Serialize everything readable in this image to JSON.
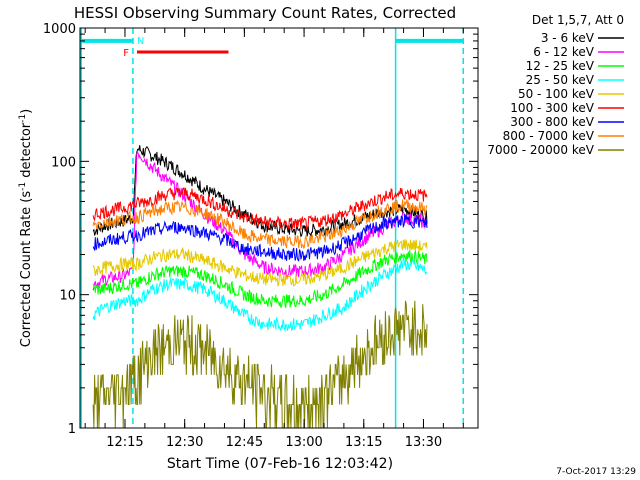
{
  "chart_data": {
    "type": "line",
    "title": "HESSI Observing Summary Count Rates, Corrected",
    "xlabel": "Start Time (07-Feb-16 12:03:42)",
    "ylabel_main": "Corrected Count Rate (s",
    "ylabel_sup1": "-1",
    "ylabel_mid": " detector",
    "ylabel_sup2": "-1",
    "ylabel_end": ")",
    "yscale": "log",
    "ylim": [
      1,
      1000
    ],
    "xlim_minutes": [
      "12:03:42",
      "13:43:42"
    ],
    "y_ticks": [
      "1",
      "10",
      "100",
      "1000"
    ],
    "x_ticks": [
      "12:15",
      "12:30",
      "12:45",
      "13:00",
      "13:15",
      "13:30"
    ],
    "x_tick_minutes": [
      735,
      750,
      765,
      780,
      795,
      810
    ],
    "legend_title": "Det 1,5,7, Att 0",
    "legend_position": "right",
    "timestamp": "7-Oct-2017 13:29",
    "flags": {
      "F": {
        "label": "F",
        "color": "#ff0000",
        "start": "12:16",
        "end": "12:41",
        "level": 0.85
      },
      "N": {
        "label": "N",
        "color": "#00ffff",
        "start": "12:17",
        "end": "12:17",
        "level": 0.95
      }
    },
    "night_bands": [
      {
        "start": "12:04",
        "end": "12:17"
      },
      {
        "start": "13:23",
        "end": "13:40"
      }
    ],
    "series": [
      {
        "name": "3 - 6 keV",
        "color": "#000000",
        "values": [
          [
            727,
            30
          ],
          [
            730,
            33
          ],
          [
            735,
            36
          ],
          [
            737,
            38
          ],
          [
            738,
            125
          ],
          [
            742,
            110
          ],
          [
            746,
            95
          ],
          [
            750,
            80
          ],
          [
            755,
            62
          ],
          [
            760,
            50
          ],
          [
            765,
            40
          ],
          [
            770,
            33
          ],
          [
            775,
            31
          ],
          [
            780,
            30
          ],
          [
            785,
            31
          ],
          [
            790,
            34
          ],
          [
            795,
            38
          ],
          [
            800,
            42
          ],
          [
            805,
            44
          ],
          [
            809,
            40
          ],
          [
            811,
            38
          ]
        ]
      },
      {
        "name": "6 - 12 keV",
        "color": "#ff00ff",
        "values": [
          [
            727,
            12
          ],
          [
            730,
            13
          ],
          [
            735,
            14
          ],
          [
            737,
            15
          ],
          [
            738,
            120
          ],
          [
            742,
            90
          ],
          [
            746,
            70
          ],
          [
            750,
            55
          ],
          [
            755,
            40
          ],
          [
            760,
            30
          ],
          [
            765,
            20
          ],
          [
            770,
            16
          ],
          [
            775,
            15
          ],
          [
            780,
            15
          ],
          [
            785,
            16
          ],
          [
            790,
            20
          ],
          [
            795,
            26
          ],
          [
            800,
            32
          ],
          [
            805,
            38
          ],
          [
            809,
            36
          ],
          [
            811,
            34
          ]
        ]
      },
      {
        "name": "12 - 25 keV",
        "color": "#00ff00",
        "values": [
          [
            727,
            11
          ],
          [
            730,
            11
          ],
          [
            735,
            12
          ],
          [
            738,
            12
          ],
          [
            742,
            14
          ],
          [
            746,
            15
          ],
          [
            750,
            15
          ],
          [
            755,
            14
          ],
          [
            760,
            12
          ],
          [
            765,
            10
          ],
          [
            770,
            9
          ],
          [
            775,
            9
          ],
          [
            780,
            9
          ],
          [
            785,
            10
          ],
          [
            790,
            12
          ],
          [
            795,
            15
          ],
          [
            800,
            18
          ],
          [
            805,
            20
          ],
          [
            809,
            19
          ],
          [
            811,
            18
          ]
        ]
      },
      {
        "name": "25 - 50 keV",
        "color": "#00ffff",
        "values": [
          [
            727,
            7
          ],
          [
            730,
            8
          ],
          [
            735,
            9
          ],
          [
            738,
            9
          ],
          [
            742,
            11
          ],
          [
            746,
            12
          ],
          [
            750,
            12
          ],
          [
            755,
            11
          ],
          [
            760,
            9
          ],
          [
            765,
            7
          ],
          [
            770,
            6
          ],
          [
            775,
            6
          ],
          [
            780,
            6
          ],
          [
            785,
            7
          ],
          [
            790,
            8
          ],
          [
            795,
            11
          ],
          [
            800,
            14
          ],
          [
            805,
            17
          ],
          [
            809,
            16
          ],
          [
            811,
            15
          ]
        ]
      },
      {
        "name": "50 - 100 keV",
        "color": "#e6c800",
        "values": [
          [
            727,
            15
          ],
          [
            730,
            16
          ],
          [
            735,
            17
          ],
          [
            738,
            17
          ],
          [
            742,
            19
          ],
          [
            746,
            20
          ],
          [
            750,
            20
          ],
          [
            755,
            18
          ],
          [
            760,
            16
          ],
          [
            765,
            14
          ],
          [
            770,
            13
          ],
          [
            775,
            13
          ],
          [
            780,
            13
          ],
          [
            785,
            14
          ],
          [
            790,
            16
          ],
          [
            795,
            19
          ],
          [
            800,
            22
          ],
          [
            805,
            24
          ],
          [
            809,
            23
          ],
          [
            811,
            22
          ]
        ]
      },
      {
        "name": "100 - 300 keV",
        "color": "#ff0000",
        "values": [
          [
            727,
            40
          ],
          [
            730,
            42
          ],
          [
            735,
            45
          ],
          [
            738,
            48
          ],
          [
            742,
            52
          ],
          [
            746,
            57
          ],
          [
            750,
            58
          ],
          [
            755,
            52
          ],
          [
            760,
            44
          ],
          [
            765,
            38
          ],
          [
            770,
            35
          ],
          [
            775,
            34
          ],
          [
            780,
            34
          ],
          [
            785,
            36
          ],
          [
            790,
            40
          ],
          [
            795,
            47
          ],
          [
            800,
            54
          ],
          [
            805,
            58
          ],
          [
            809,
            56
          ],
          [
            811,
            55
          ]
        ]
      },
      {
        "name": "300 - 800 keV",
        "color": "#0000ff",
        "values": [
          [
            727,
            24
          ],
          [
            730,
            25
          ],
          [
            735,
            27
          ],
          [
            738,
            28
          ],
          [
            742,
            30
          ],
          [
            746,
            32
          ],
          [
            750,
            32
          ],
          [
            755,
            29
          ],
          [
            760,
            26
          ],
          [
            765,
            22
          ],
          [
            770,
            21
          ],
          [
            775,
            20
          ],
          [
            780,
            20
          ],
          [
            785,
            21
          ],
          [
            790,
            24
          ],
          [
            795,
            29
          ],
          [
            800,
            34
          ],
          [
            805,
            36
          ],
          [
            809,
            35
          ],
          [
            811,
            34
          ]
        ]
      },
      {
        "name": "800 - 7000 keV",
        "color": "#ff8000",
        "values": [
          [
            727,
            33
          ],
          [
            730,
            35
          ],
          [
            735,
            37
          ],
          [
            738,
            38
          ],
          [
            742,
            42
          ],
          [
            746,
            45
          ],
          [
            750,
            45
          ],
          [
            755,
            41
          ],
          [
            760,
            35
          ],
          [
            765,
            28
          ],
          [
            770,
            26
          ],
          [
            775,
            25
          ],
          [
            780,
            25
          ],
          [
            785,
            27
          ],
          [
            790,
            31
          ],
          [
            795,
            37
          ],
          [
            800,
            44
          ],
          [
            805,
            47
          ],
          [
            809,
            45
          ],
          [
            811,
            44
          ]
        ]
      },
      {
        "name": "7000 - 20000 keV",
        "color": "#808000",
        "values": [
          [
            727,
            1.5
          ],
          [
            730,
            1.7
          ],
          [
            735,
            2.0
          ],
          [
            738,
            2.5
          ],
          [
            742,
            3.5
          ],
          [
            746,
            4.2
          ],
          [
            750,
            4.5
          ],
          [
            755,
            3.8
          ],
          [
            760,
            3.0
          ],
          [
            765,
            2.2
          ],
          [
            770,
            1.8
          ],
          [
            775,
            1.5
          ],
          [
            780,
            1.5
          ],
          [
            785,
            1.7
          ],
          [
            790,
            2.5
          ],
          [
            795,
            3.5
          ],
          [
            800,
            4.8
          ],
          [
            805,
            5.8
          ],
          [
            809,
            5.5
          ],
          [
            811,
            5.2
          ]
        ]
      }
    ]
  }
}
